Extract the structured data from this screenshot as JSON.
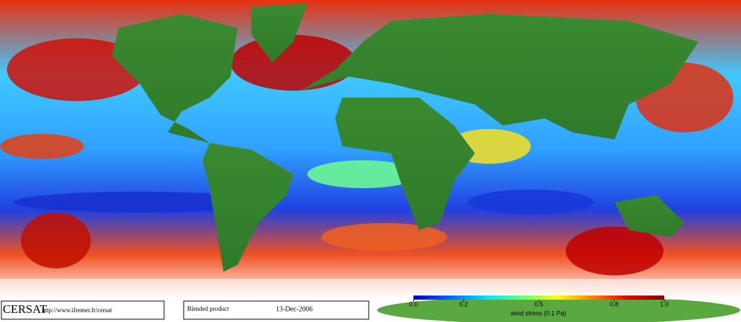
{
  "footer": {
    "logo": "CERSAT",
    "url": "http://www.ifremer.fr/cersat",
    "product": "Blended product",
    "date": "13-Dec-2006"
  },
  "colorbar": {
    "label": "wind stress (0.1 Pa)",
    "range": [
      0,
      1
    ],
    "ticks": [
      {
        "value": 0,
        "label": "0.0"
      },
      0.2,
      0.5,
      0.8,
      {
        "value": 1,
        "label": "1.0"
      }
    ],
    "colors": [
      "#0000c8",
      "#0064ff",
      "#00e0ff",
      "#60ff80",
      "#ffff00",
      "#ff8000",
      "#e00000",
      "#800000"
    ]
  }
}
